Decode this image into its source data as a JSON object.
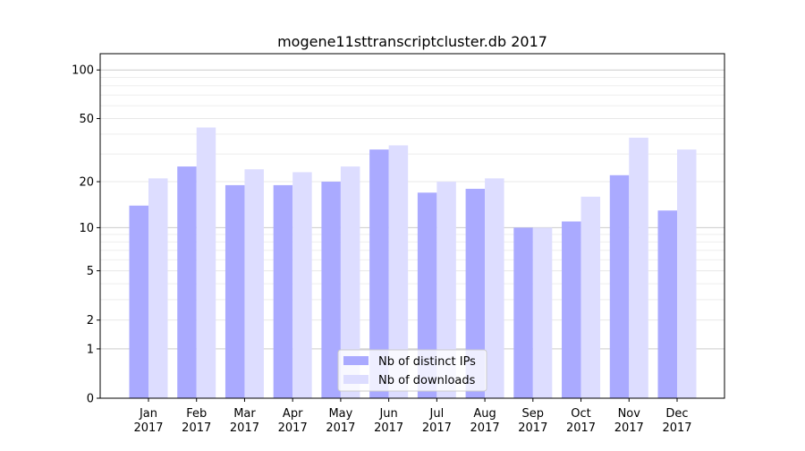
{
  "chart_data": {
    "type": "bar",
    "title": "mogene11sttranscriptcluster.db 2017",
    "xlabel": "",
    "ylabel": "",
    "yscale": "symlog",
    "ylim": [
      0,
      120
    ],
    "yticks": [
      0,
      1,
      2,
      5,
      10,
      20,
      50,
      100
    ],
    "grid": true,
    "legend_position": "bottom-center",
    "categories": [
      "Jan\n2017",
      "Feb\n2017",
      "Mar\n2017",
      "Apr\n2017",
      "May\n2017",
      "Jun\n2017",
      "Jul\n2017",
      "Aug\n2017",
      "Sep\n2017",
      "Oct\n2017",
      "Nov\n2017",
      "Dec\n2017"
    ],
    "series": [
      {
        "name": "Nb of distinct IPs",
        "color": "#aaaaff",
        "values": [
          14,
          25,
          19,
          19,
          20,
          32,
          17,
          18,
          10,
          11,
          22,
          13
        ]
      },
      {
        "name": "Nb of downloads",
        "color": "#ddddff",
        "values": [
          21,
          44,
          24,
          23,
          25,
          34,
          20,
          21,
          10,
          16,
          38,
          32
        ]
      }
    ]
  }
}
